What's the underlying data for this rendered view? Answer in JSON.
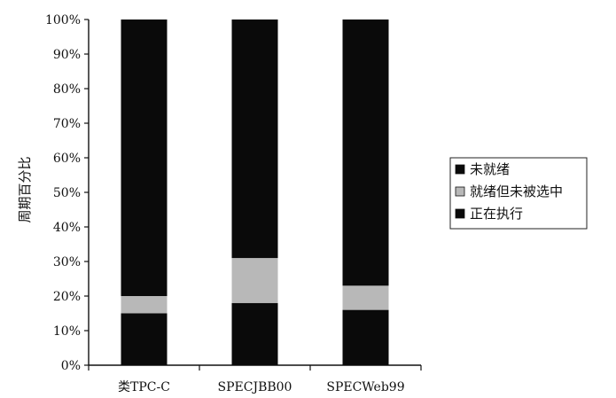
{
  "chart_data": {
    "type": "bar",
    "stacked": true,
    "categories": [
      "类TPC-C",
      "SPECJBB00",
      "SPECWeb99"
    ],
    "series": [
      {
        "name": "正在执行",
        "values": [
          15,
          18,
          16
        ],
        "color": "#0a0a0a"
      },
      {
        "name": "就绪但未被选中",
        "values": [
          5,
          13,
          7
        ],
        "color": "#b8b8b8"
      },
      {
        "name": "未就绪",
        "values": [
          80,
          69,
          77
        ],
        "color": "#0a0a0a"
      }
    ],
    "legend_order": [
      2,
      1,
      0
    ],
    "ylabel": "周期百分比",
    "ylim": [
      0,
      100
    ],
    "yticks": [
      "0%",
      "10%",
      "20%",
      "30%",
      "40%",
      "50%",
      "60%",
      "70%",
      "80%",
      "90%",
      "100%"
    ],
    "grid": false,
    "legend_position": "right"
  }
}
